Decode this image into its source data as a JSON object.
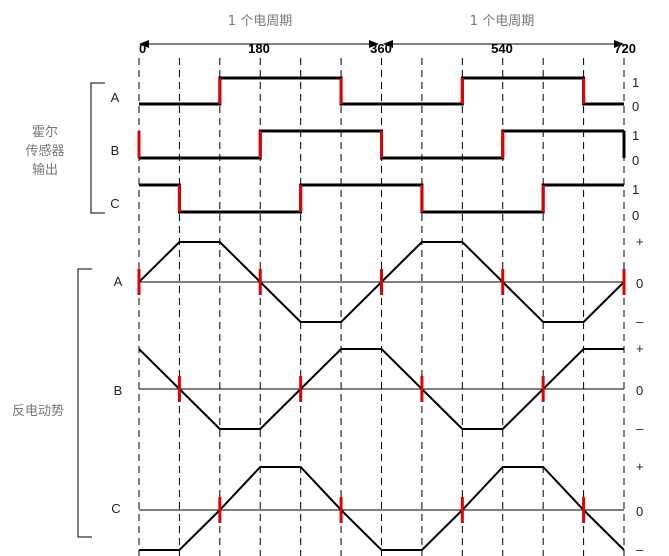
{
  "period_label": "1 个电周期",
  "period_labels": [
    "1 个电周期",
    "1 个电周期"
  ],
  "angle_ticks": [
    "0",
    "180",
    "360",
    "540",
    "720"
  ],
  "hall_group_label": [
    "霍尔",
    "传感器",
    "输出"
  ],
  "bemf_group_label": "反电动势",
  "phase_labels": [
    "A",
    "B",
    "C"
  ],
  "hall_level_labels": [
    "1",
    "0"
  ],
  "bemf_level_labels": [
    "+",
    "0",
    "–"
  ],
  "colors": {
    "trace": "#000000",
    "transition": "#e00000",
    "grid": "#000000",
    "text_gray": "#777777"
  },
  "step_degrees": 60,
  "hall": [
    {
      "name": "A",
      "levels": [
        0,
        0,
        1,
        1,
        1,
        0,
        0,
        0,
        1,
        1,
        1,
        0
      ]
    },
    {
      "name": "B",
      "levels": [
        0,
        0,
        0,
        1,
        1,
        1,
        0,
        0,
        0,
        1,
        1,
        1
      ]
    },
    {
      "name": "C",
      "levels": [
        1,
        0,
        0,
        0,
        1,
        1,
        1,
        0,
        0,
        0,
        1,
        1
      ]
    }
  ],
  "bemf": [
    {
      "name": "A",
      "points": [
        0,
        1,
        1,
        0,
        -1,
        -1,
        0,
        1,
        1,
        0,
        -1,
        -1,
        0
      ]
    },
    {
      "name": "B",
      "points": [
        1,
        0,
        -1,
        -1,
        0,
        1,
        1,
        0,
        -1,
        -1,
        0,
        1,
        1
      ]
    },
    {
      "name": "C",
      "points": [
        -1,
        -1,
        0,
        1,
        1,
        0,
        -1,
        -1,
        0,
        1,
        1,
        0,
        -1
      ]
    }
  ],
  "bemf_zero_crossings": [
    [
      0,
      3,
      6,
      9,
      12
    ],
    [
      1,
      4,
      7,
      10
    ],
    [
      2,
      5,
      8,
      11
    ]
  ]
}
